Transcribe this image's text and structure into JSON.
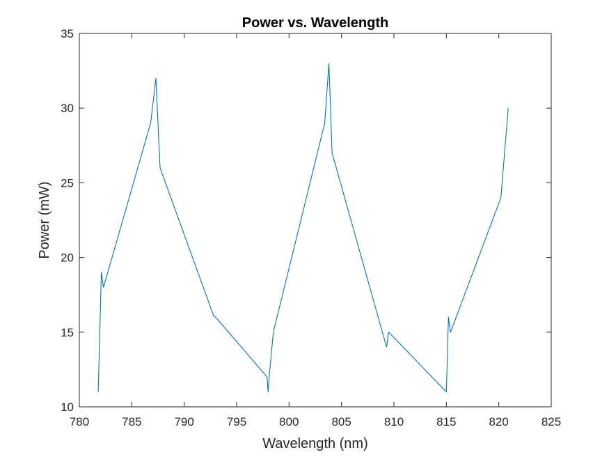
{
  "chart_data": {
    "type": "line",
    "title": "Power vs. Wavelength",
    "xlabel": "Wavelength (nm)",
    "ylabel": "Power (mW)",
    "xlim": [
      780,
      825
    ],
    "ylim": [
      10,
      35
    ],
    "xticks": [
      780,
      785,
      790,
      795,
      800,
      805,
      810,
      815,
      820,
      825
    ],
    "yticks": [
      10,
      15,
      20,
      25,
      30,
      35
    ],
    "grid": false,
    "legend": "none",
    "line_color": "#0072BD",
    "axis_color": "#262626",
    "series": [
      {
        "x": [
          781.8,
          782.1,
          782.3,
          786.8,
          787.3,
          787.7,
          792.8,
          793.0,
          797.9,
          798.0,
          798.1,
          798.5,
          803.4,
          803.8,
          804.1,
          809.3,
          809.5,
          815.0,
          815.2,
          815.4,
          820.2,
          820.9
        ],
        "y": [
          11,
          19,
          18,
          29,
          32,
          26,
          16.1,
          16,
          12,
          11,
          12,
          15,
          29,
          33,
          27,
          14,
          15,
          11,
          16,
          15,
          24,
          30
        ]
      }
    ]
  }
}
